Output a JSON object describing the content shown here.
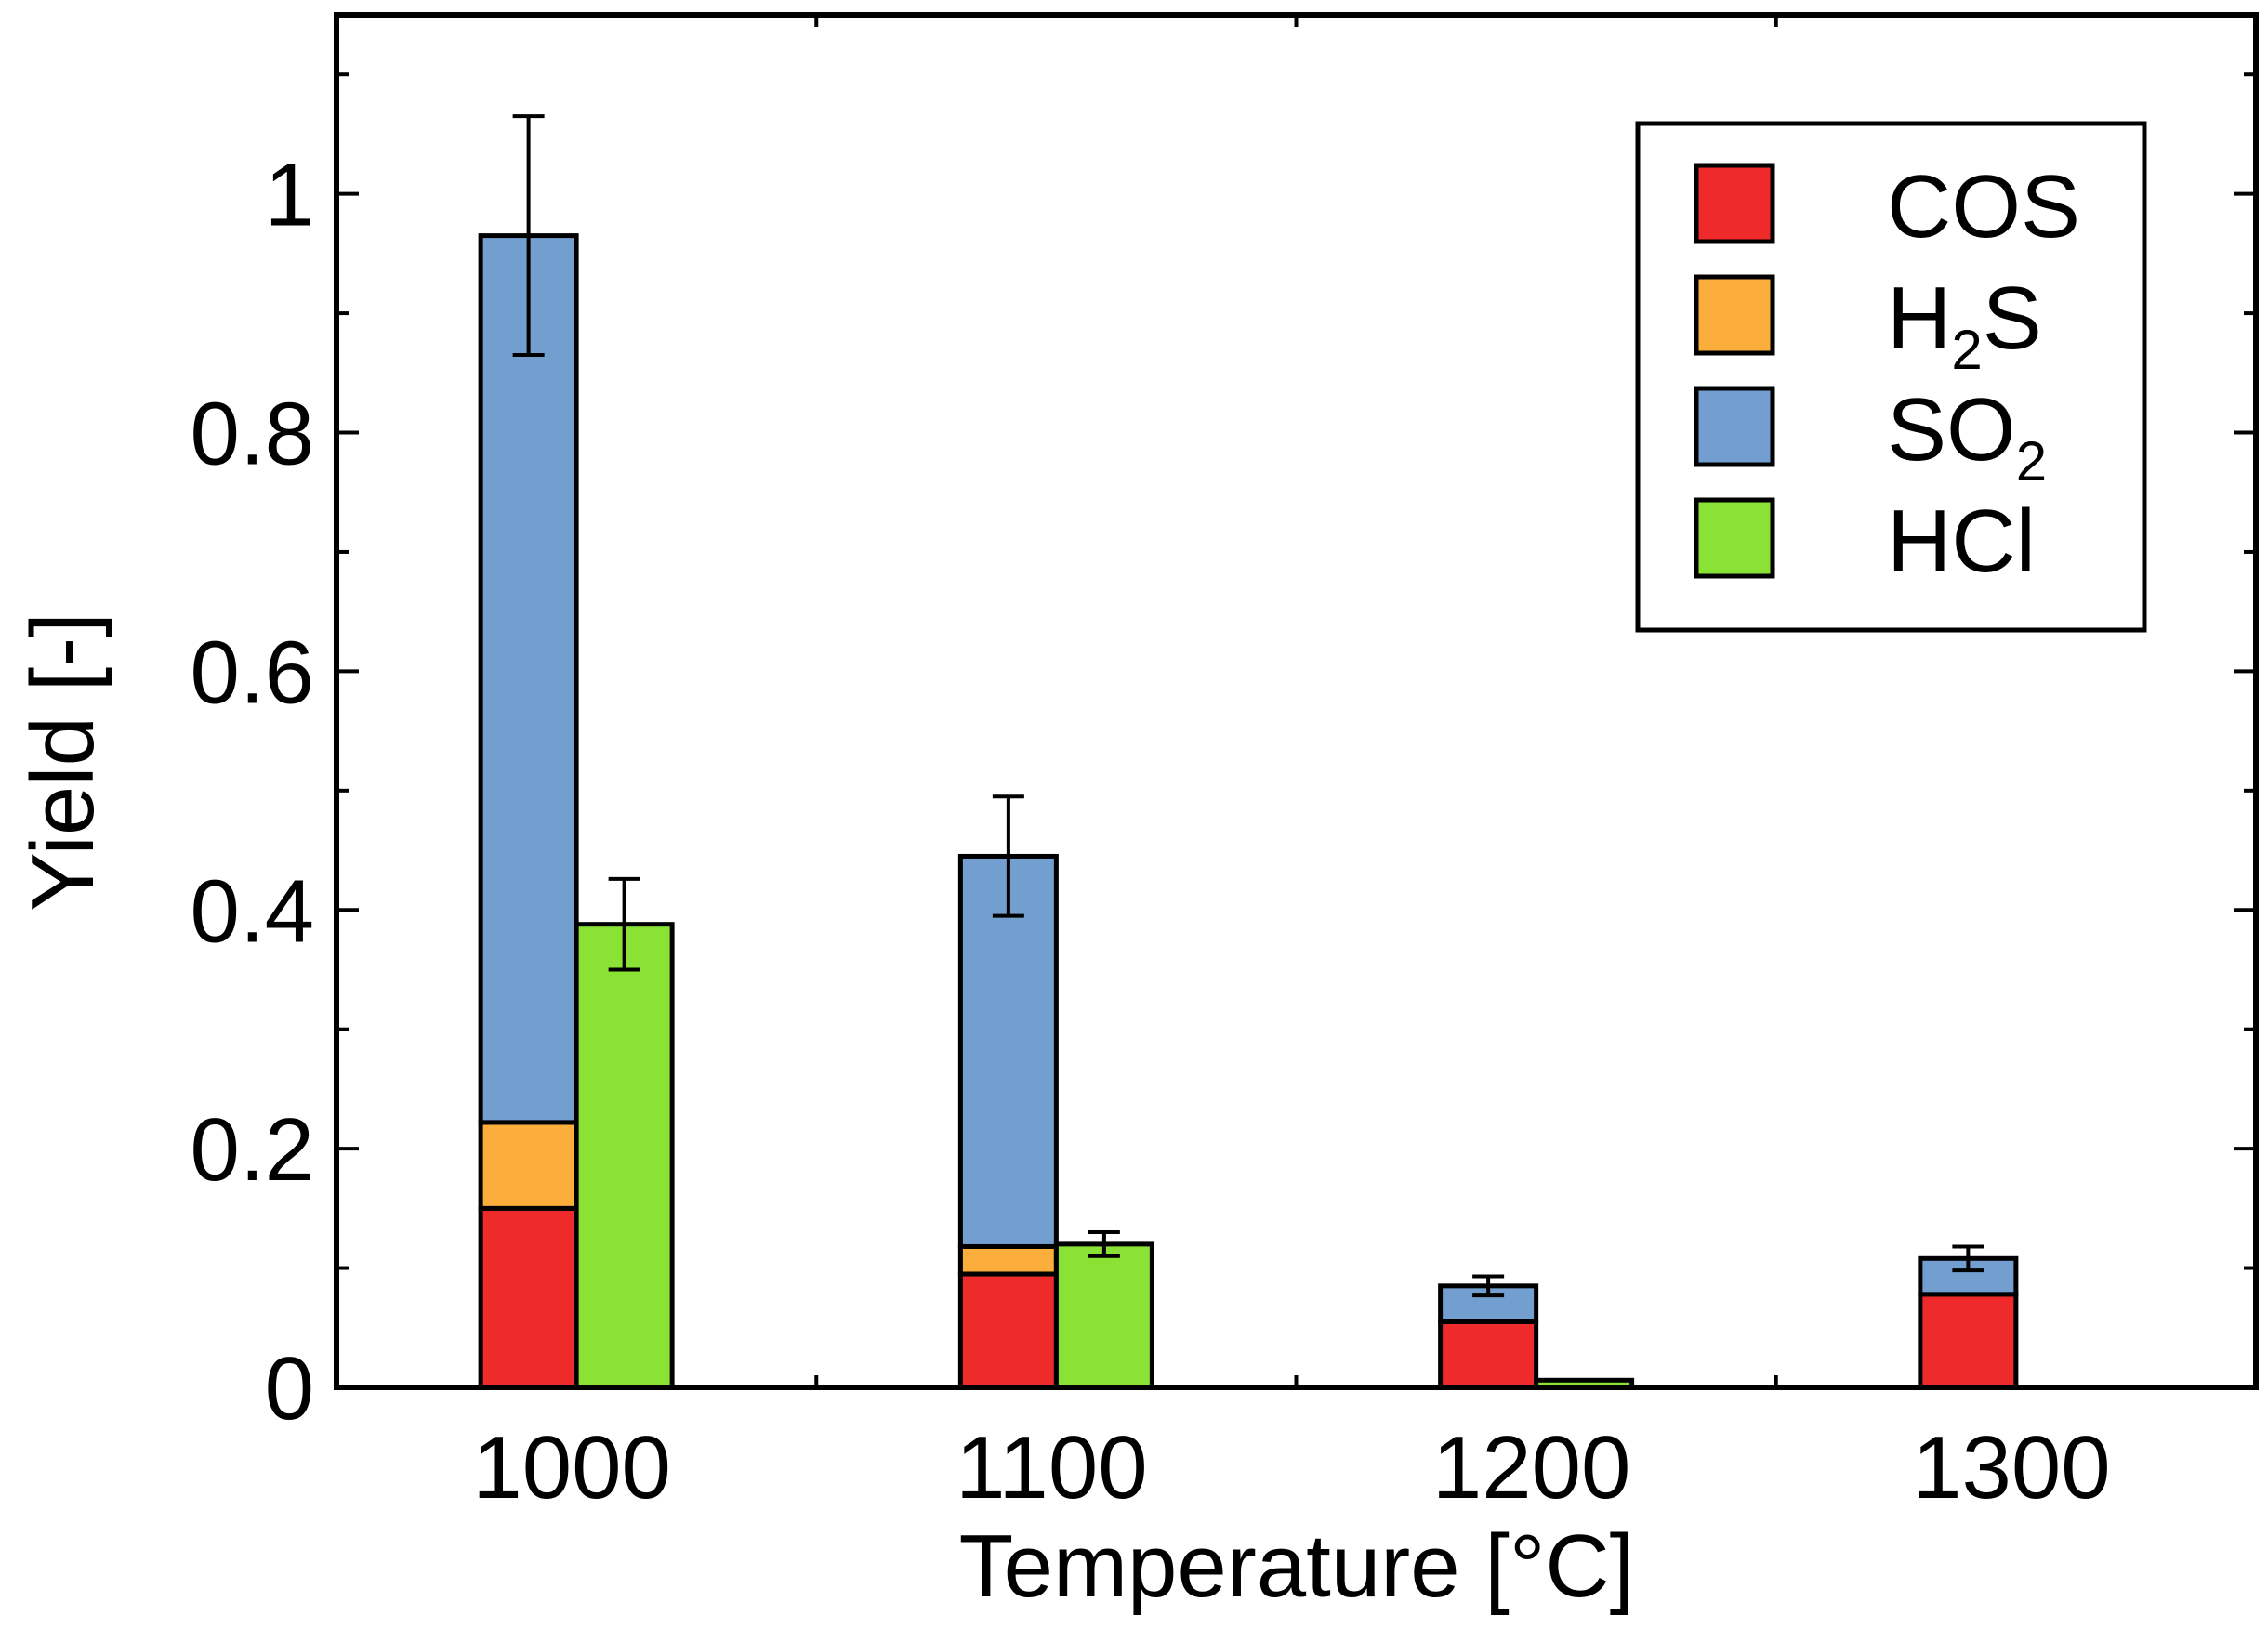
{
  "chart_data": {
    "type": "bar",
    "stacked": true,
    "xlabel": "Temperature [°C]",
    "ylabel": "Yield [-]",
    "ylim": [
      0,
      1.15
    ],
    "yticks": [
      0,
      0.2,
      0.4,
      0.6,
      0.8,
      1
    ],
    "ytick_labels": [
      "0",
      "0.2",
      "0.4",
      "0.6",
      "0.8",
      "1"
    ],
    "categories": [
      "1000",
      "1100",
      "1200",
      "1300"
    ],
    "legend_position": "top-right",
    "grid": false,
    "legend": [
      {
        "label": "COS",
        "sub": "",
        "tail": "",
        "color": "#ee2a2a"
      },
      {
        "label": "H",
        "sub": "2",
        "tail": "S",
        "color": "#fbae3c"
      },
      {
        "label": "SO",
        "sub": "2",
        "tail": "",
        "color": "#729fcf"
      },
      {
        "label": "HCl",
        "sub": "",
        "tail": "",
        "color": "#8ae234"
      }
    ],
    "series": [
      {
        "name": "COS",
        "stack": "sulfur",
        "color": "#ee2a2a",
        "values": [
          0.15,
          0.095,
          0.055,
          0.078
        ]
      },
      {
        "name": "H2S",
        "stack": "sulfur",
        "color": "#fbae3c",
        "values": [
          0.072,
          0.023,
          0.0,
          0.0
        ]
      },
      {
        "name": "SO2",
        "stack": "sulfur",
        "color": "#729fcf",
        "values": [
          0.743,
          0.327,
          0.03,
          0.03
        ]
      },
      {
        "name": "HCl",
        "stack": "chlorine",
        "color": "#8ae234",
        "values": [
          0.388,
          0.12,
          0.006,
          0.0
        ]
      }
    ],
    "error_bars": [
      {
        "stack": "sulfur",
        "center": [
          0.965,
          0.445,
          0.085,
          0.108
        ],
        "err": [
          0.1,
          0.05,
          0.008,
          0.01
        ]
      },
      {
        "stack": "chlorine",
        "center": [
          0.388,
          0.12,
          0.006,
          null
        ],
        "err": [
          0.038,
          0.01,
          0.0,
          null
        ]
      }
    ]
  }
}
